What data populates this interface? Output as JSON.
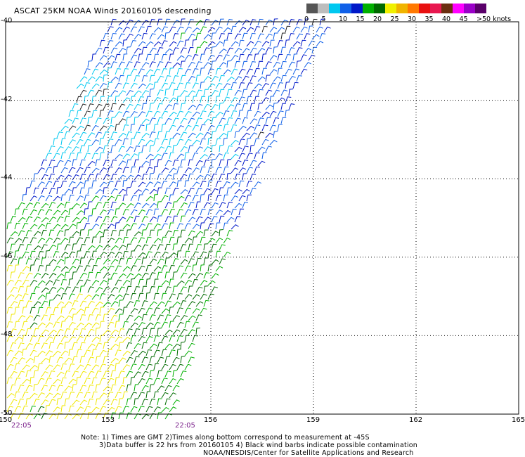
{
  "title": "ASCAT 25KM NOAA Winds 20160105 descending",
  "legend": {
    "colors": [
      "#555555",
      "#bdbdbd",
      "#00c8f0",
      "#1060e8",
      "#0018c8",
      "#00b000",
      "#006a00",
      "#f0f000",
      "#f0b400",
      "#ff7800",
      "#e81010",
      "#e81850",
      "#6b2e10",
      "#ff00ff",
      "#9a00c8",
      "#5a006a"
    ],
    "labels": [
      "0",
      "5",
      "10",
      "15",
      "20",
      "25",
      "30",
      "35",
      "40",
      "45",
      ">50 knots"
    ],
    "units": "knots"
  },
  "axes": {
    "lon_ticks": [
      "150",
      "153",
      "156",
      "159",
      "162",
      "165"
    ],
    "lat_ticks": [
      "-40",
      "-42",
      "-44",
      "-46",
      "-48",
      "-50"
    ],
    "lon_range": [
      150,
      165
    ],
    "lat_range": [
      -50,
      -40
    ],
    "grid": "dotted"
  },
  "time_labels": [
    "22:05",
    "22:05"
  ],
  "notes": {
    "line1": "Note: 1) Times are GMT 2)Times along bottom correspond to measurement at -45S",
    "line2": "3)Data buffer is 22 hrs from 20160105 4) Black wind barbs indicate possible contamination",
    "line3": "NOAA/NESDIS/Center for Satellite Applications and Research"
  }
}
